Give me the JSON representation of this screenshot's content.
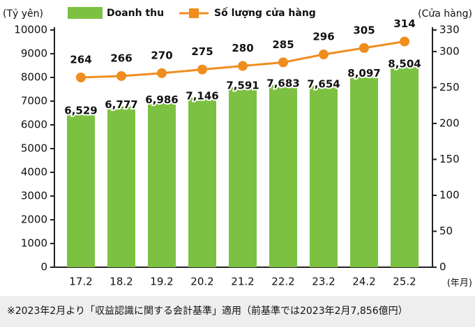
{
  "chart_data": {
    "type": "bar_line",
    "y_label": "(Tỷ yên)",
    "y2_label": "(Cửa hàng)",
    "x_label": "(年月)",
    "categories": [
      "17.2",
      "18.2",
      "19.2",
      "20.2",
      "21.2",
      "22.2",
      "23.2",
      "24.2",
      "25.2"
    ],
    "series": [
      {
        "name": "Doanh thu",
        "type": "bar",
        "color": "#7cc142",
        "values": [
          6529,
          6777,
          6986,
          7146,
          7591,
          7683,
          7654,
          8097,
          8504
        ],
        "value_labels": [
          "6,529",
          "6,777",
          "6,986",
          "7,146",
          "7,591",
          "7,683",
          "7,654",
          "8,097",
          "8,504"
        ]
      },
      {
        "name": "Số lượng cửa hàng",
        "type": "line",
        "axis": "y2",
        "color": "#ef8d1e",
        "values": [
          264,
          266,
          270,
          275,
          280,
          285,
          296,
          305,
          314
        ]
      }
    ],
    "ylim": [
      0,
      10000
    ],
    "yticks": [
      0,
      1000,
      2000,
      3000,
      4000,
      5000,
      6000,
      7000,
      8000,
      9000,
      10000
    ],
    "y2lim": [
      0,
      330
    ],
    "y2ticks": [
      0,
      50,
      100,
      150,
      200,
      250,
      300,
      330
    ],
    "note": "※2023年2月より「収益認識に関する会計基準」適用（前基準では2023年2月7,856億円）"
  }
}
